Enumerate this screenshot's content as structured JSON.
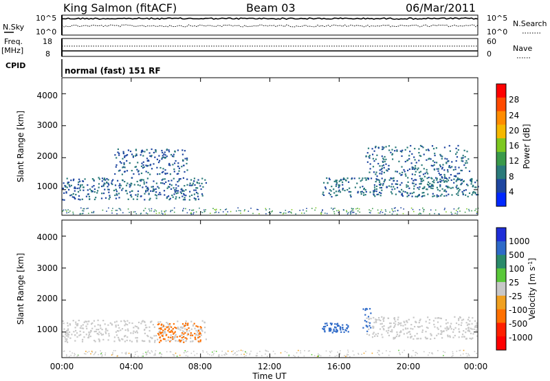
{
  "header": {
    "title": "King Salmon (fitACF)",
    "beam": "Beam 03",
    "date": "06/Mar/2011"
  },
  "noise_panel": {
    "left_label": "N.Sky",
    "left_ticks": [
      "10^5",
      "10^0"
    ],
    "right_label": "N.Search",
    "right_ticks": [
      "10^5",
      "10^0"
    ]
  },
  "freq_panel": {
    "left_label_1": "Freq.",
    "left_label_2": "[MHz]",
    "left_ticks": [
      "18",
      "8"
    ],
    "right_label": "Nave",
    "right_ticks": [
      "60",
      "0"
    ]
  },
  "cpid_panel": {
    "label": "CPID",
    "text": "normal (fast) 151 RF"
  },
  "x_axis": {
    "label": "Time UT",
    "ticks": [
      "00:00",
      "04:00",
      "08:00",
      "12:00",
      "16:00",
      "20:00",
      "00:00"
    ]
  },
  "power_colorbar": {
    "label": "Power [dB]",
    "ticks": [
      "28",
      "24",
      "20",
      "16",
      "12",
      "8",
      "4"
    ],
    "colors": [
      "#ff0000",
      "#ff4a00",
      "#ff8c00",
      "#f5b800",
      "#7dc820",
      "#3a9a4a",
      "#2a7a7a",
      "#1e46a0",
      "#0028ff"
    ]
  },
  "velocity_colorbar": {
    "label": "Velocity [m s",
    "label_sup": "-1",
    "label_end": "]",
    "ticks": [
      "1000",
      "500",
      "100",
      "25",
      "-25",
      "-100",
      "-500",
      "-1000"
    ],
    "colors": [
      "#1e2ed8",
      "#2e6ac8",
      "#2a8a6a",
      "#5ac83a",
      "#c8c8c8",
      "#f0a020",
      "#ff7000",
      "#ff2000",
      "#ff0000"
    ]
  },
  "chart_data": [
    {
      "type": "heatmap",
      "title": "Beam 03",
      "xlabel": "Time UT",
      "ylabel": "Slant Range [km]",
      "xlim": [
        0,
        24
      ],
      "ylim": [
        200,
        4500
      ],
      "yticks": [
        "4000",
        "3000",
        "2000",
        "1000"
      ],
      "parameter": "Power [dB]",
      "echo_regions": [
        {
          "t_start": 0.0,
          "t_end": 8.3,
          "r_low": 700,
          "r_high": 1400,
          "value_db": 6
        },
        {
          "t_start": 3.0,
          "t_end": 7.2,
          "r_low": 1500,
          "r_high": 2300,
          "value_db": 5
        },
        {
          "t_start": 15.0,
          "t_end": 24.0,
          "r_low": 800,
          "r_high": 1400,
          "value_db": 7
        },
        {
          "t_start": 17.5,
          "t_end": 23.5,
          "r_low": 1400,
          "r_high": 2400,
          "value_db": 6
        }
      ]
    },
    {
      "type": "heatmap",
      "title": "",
      "xlabel": "Time UT",
      "ylabel": "Slant Range [km]",
      "xlim": [
        0,
        24
      ],
      "ylim": [
        200,
        4500
      ],
      "yticks": [
        "4000",
        "3000",
        "2000",
        "1000"
      ],
      "parameter": "Velocity [m s-1]",
      "echo_regions": [
        {
          "t_start": 0.0,
          "t_end": 8.3,
          "r_low": 700,
          "r_high": 1400,
          "value_ms": 0
        },
        {
          "t_start": 5.5,
          "t_end": 8.0,
          "r_low": 700,
          "r_high": 1300,
          "value_ms": -150
        },
        {
          "t_start": 15.0,
          "t_end": 16.5,
          "r_low": 1000,
          "r_high": 1300,
          "value_ms": 150
        },
        {
          "t_start": 17.3,
          "t_end": 17.8,
          "r_low": 1000,
          "r_high": 1800,
          "value_ms": 120
        },
        {
          "t_start": 17.5,
          "t_end": 24.0,
          "r_low": 800,
          "r_high": 1500,
          "value_ms": 0
        }
      ]
    }
  ]
}
